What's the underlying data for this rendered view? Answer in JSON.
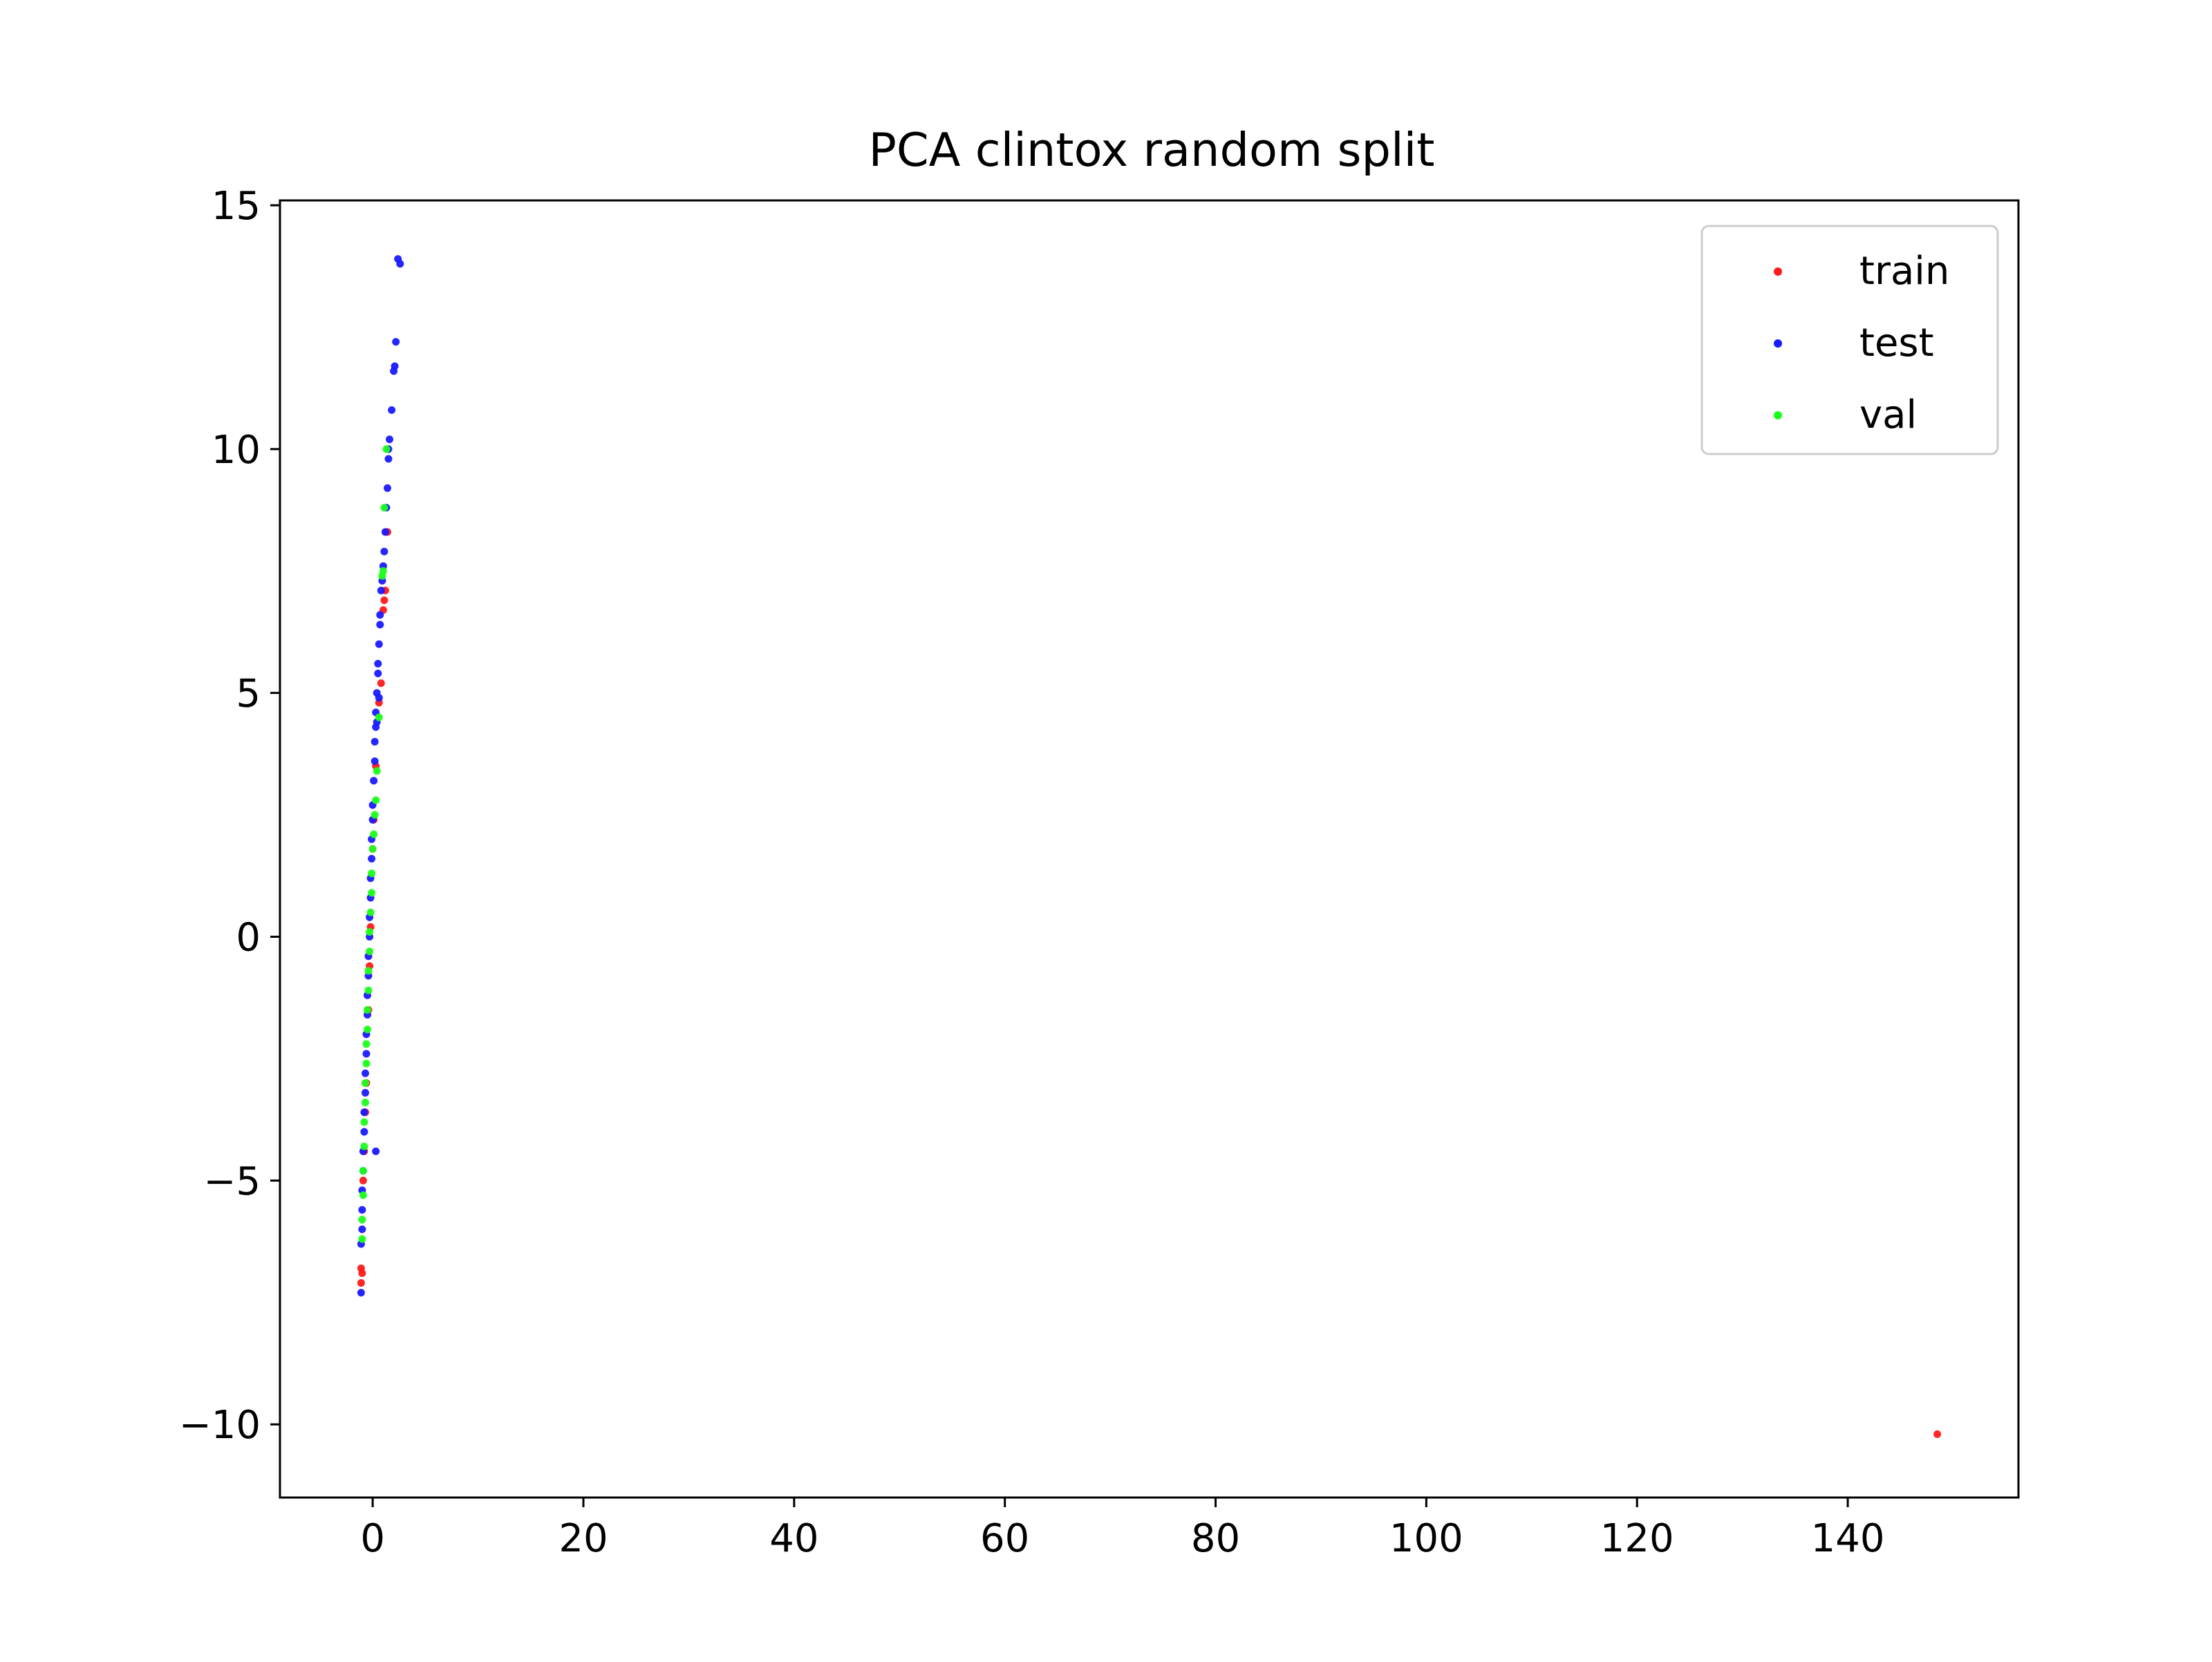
{
  "chart_data": {
    "type": "scatter",
    "title": "PCA clintox random split",
    "xlabel": "",
    "ylabel": "",
    "xlim": [
      -8.8,
      156.2
    ],
    "ylim": [
      -11.5,
      15.1
    ],
    "xticks": [
      0,
      20,
      40,
      60,
      80,
      100,
      120,
      140
    ],
    "yticks": [
      -10,
      -5,
      0,
      5,
      10,
      15
    ],
    "xtick_labels": [
      "0",
      "20",
      "40",
      "60",
      "80",
      "100",
      "120",
      "140"
    ],
    "ytick_labels": [
      "−10",
      "−5",
      "0",
      "5",
      "10",
      "15"
    ],
    "grid": false,
    "legend": {
      "position": "top-right"
    },
    "series": [
      {
        "name": "train",
        "color": "#ff1a1a",
        "points": [
          [
            148.5,
            -10.2
          ],
          [
            -1.1,
            -6.8
          ],
          [
            -1.1,
            -7.1
          ],
          [
            -1.0,
            -6.9
          ],
          [
            -0.9,
            -5.0
          ],
          [
            -0.8,
            -4.4
          ],
          [
            -0.6,
            -3.0
          ],
          [
            -0.4,
            -1.5
          ],
          [
            -0.2,
            0.2
          ],
          [
            0.0,
            1.8
          ],
          [
            0.3,
            3.5
          ],
          [
            0.6,
            4.8
          ],
          [
            0.8,
            5.2
          ],
          [
            1.0,
            6.7
          ],
          [
            1.1,
            6.9
          ],
          [
            1.2,
            7.1
          ],
          [
            1.4,
            8.3
          ],
          [
            -0.7,
            -3.6
          ],
          [
            -0.3,
            -0.6
          ],
          [
            0.1,
            2.4
          ]
        ]
      },
      {
        "name": "test",
        "color": "#1a1aff",
        "points": [
          [
            2.4,
            13.9
          ],
          [
            2.6,
            13.8
          ],
          [
            2.2,
            12.2
          ],
          [
            2.1,
            11.7
          ],
          [
            2.0,
            11.6
          ],
          [
            1.8,
            10.8
          ],
          [
            1.6,
            10.2
          ],
          [
            1.5,
            10.0
          ],
          [
            1.5,
            9.8
          ],
          [
            1.4,
            9.2
          ],
          [
            1.3,
            8.8
          ],
          [
            1.2,
            8.3
          ],
          [
            1.1,
            7.9
          ],
          [
            1.0,
            7.6
          ],
          [
            0.9,
            7.3
          ],
          [
            0.8,
            7.1
          ],
          [
            0.7,
            6.6
          ],
          [
            0.7,
            6.4
          ],
          [
            0.6,
            6.0
          ],
          [
            0.5,
            5.6
          ],
          [
            0.5,
            5.4
          ],
          [
            0.4,
            5.0
          ],
          [
            0.3,
            4.6
          ],
          [
            0.3,
            4.3
          ],
          [
            0.2,
            4.0
          ],
          [
            0.2,
            3.6
          ],
          [
            0.1,
            3.2
          ],
          [
            0.0,
            2.7
          ],
          [
            0.0,
            2.4
          ],
          [
            -0.1,
            2.0
          ],
          [
            -0.1,
            1.6
          ],
          [
            -0.2,
            1.2
          ],
          [
            -0.2,
            0.8
          ],
          [
            -0.3,
            0.4
          ],
          [
            -0.3,
            0.0
          ],
          [
            -0.4,
            -0.4
          ],
          [
            -0.4,
            -0.8
          ],
          [
            -0.5,
            -1.2
          ],
          [
            -0.5,
            -1.6
          ],
          [
            -0.6,
            -2.0
          ],
          [
            -0.6,
            -2.4
          ],
          [
            -0.7,
            -2.8
          ],
          [
            -0.7,
            -3.2
          ],
          [
            -0.8,
            -3.6
          ],
          [
            -0.8,
            -4.0
          ],
          [
            -0.9,
            -4.4
          ],
          [
            -0.9,
            -4.8
          ],
          [
            -1.0,
            -5.2
          ],
          [
            -1.0,
            -5.6
          ],
          [
            -1.0,
            -6.0
          ],
          [
            -1.1,
            -6.3
          ],
          [
            -1.1,
            -7.3
          ],
          [
            0.3,
            -4.4
          ],
          [
            0.6,
            4.9
          ],
          [
            0.4,
            4.4
          ]
        ]
      },
      {
        "name": "val",
        "color": "#1aff1a",
        "points": [
          [
            1.3,
            10.0
          ],
          [
            1.1,
            8.8
          ],
          [
            1.0,
            7.5
          ],
          [
            0.9,
            7.4
          ],
          [
            0.6,
            4.5
          ],
          [
            0.4,
            3.4
          ],
          [
            0.3,
            2.8
          ],
          [
            0.2,
            2.5
          ],
          [
            0.1,
            2.1
          ],
          [
            0.0,
            1.8
          ],
          [
            -0.1,
            1.3
          ],
          [
            -0.1,
            0.9
          ],
          [
            -0.2,
            0.5
          ],
          [
            -0.3,
            0.1
          ],
          [
            -0.3,
            -0.3
          ],
          [
            -0.4,
            -0.7
          ],
          [
            -0.4,
            -1.1
          ],
          [
            -0.5,
            -1.5
          ],
          [
            -0.5,
            -1.9
          ],
          [
            -0.6,
            -2.2
          ],
          [
            -0.6,
            -2.6
          ],
          [
            -0.7,
            -3.0
          ],
          [
            -0.7,
            -3.4
          ],
          [
            -0.8,
            -3.8
          ],
          [
            -0.8,
            -4.3
          ],
          [
            -0.9,
            -4.8
          ],
          [
            -0.9,
            -5.3
          ],
          [
            -1.0,
            -5.8
          ],
          [
            -1.0,
            -6.2
          ]
        ]
      }
    ]
  }
}
